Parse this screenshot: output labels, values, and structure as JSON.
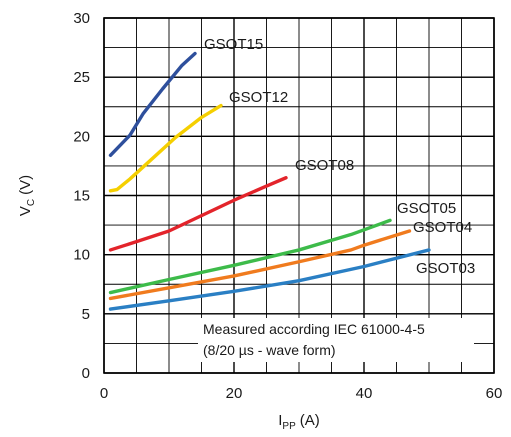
{
  "chart_data": {
    "type": "line",
    "title": "",
    "xlabel": "I",
    "xlabel_sub": "PP",
    "xlabel_unit": "(A)",
    "ylabel": "V",
    "ylabel_sub": "C",
    "ylabel_unit": "(V)",
    "xlim": [
      0,
      60
    ],
    "ylim": [
      0,
      30
    ],
    "x_ticks": [
      0,
      20,
      40,
      60
    ],
    "y_ticks": [
      0,
      5,
      10,
      15,
      20,
      25,
      30
    ],
    "x_minor_step": 5,
    "y_minor_step": 2.5,
    "grid": true,
    "annotation": [
      "Measured according IEC 61000-4-5",
      "(8/20 µs - wave form)"
    ],
    "series": [
      {
        "name": "GSOT15",
        "color": "#2e4f9c",
        "x": [
          1,
          4,
          6,
          9,
          12,
          14
        ],
        "y": [
          18.4,
          20.1,
          21.9,
          24.0,
          26.0,
          27.0
        ]
      },
      {
        "name": "GSOT12",
        "color": "#f5cf00",
        "x": [
          1,
          2,
          4,
          7,
          11,
          15,
          18
        ],
        "y": [
          15.4,
          15.5,
          16.4,
          17.9,
          19.9,
          21.6,
          22.6
        ]
      },
      {
        "name": "GSOT08",
        "color": "#e3242b",
        "x": [
          1,
          5,
          10,
          15,
          20,
          25,
          28
        ],
        "y": [
          10.4,
          11.1,
          12.0,
          13.3,
          14.6,
          15.8,
          16.5
        ]
      },
      {
        "name": "GSOT05",
        "color": "#3dbb4a",
        "x": [
          1,
          10,
          20,
          30,
          38,
          44
        ],
        "y": [
          6.8,
          7.9,
          9.1,
          10.4,
          11.7,
          12.9
        ]
      },
      {
        "name": "GSOT04",
        "color": "#f07b1e",
        "x": [
          1,
          10,
          20,
          30,
          38,
          40,
          47
        ],
        "y": [
          6.3,
          7.2,
          8.2,
          9.4,
          10.4,
          10.8,
          12.0
        ]
      },
      {
        "name": "GSOT03",
        "color": "#2a7fc4",
        "x": [
          1,
          10,
          20,
          30,
          40,
          50
        ],
        "y": [
          5.4,
          6.1,
          6.9,
          7.8,
          9.0,
          10.4
        ]
      }
    ]
  }
}
